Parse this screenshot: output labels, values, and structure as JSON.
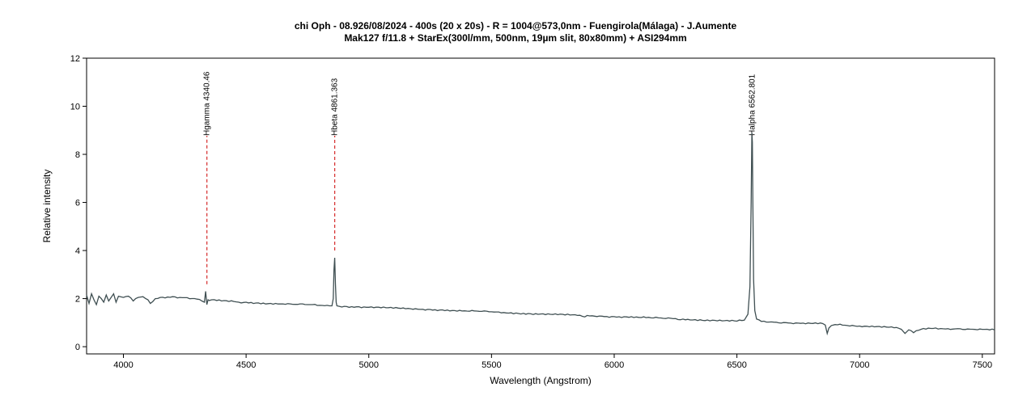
{
  "chart_data": {
    "type": "line",
    "title": "chi Oph - 08.926/08/2024 - 400s (20 x 20s) - R = 1004@573,0nm - Fuengirola(Málaga) - J.Aumente",
    "subtitle": "Mak127 f/11.8 + StarEx(300l/mm, 500nm, 19µm slit, 80x80mm) + ASI294mm",
    "xlabel": "Wavelength (Angstrom)",
    "ylabel": "Relative intensity",
    "xlim": [
      3850,
      7550
    ],
    "ylim": [
      -0.3,
      12
    ],
    "xticks": [
      4000,
      4500,
      5000,
      5500,
      6000,
      6500,
      7000,
      7500
    ],
    "yticks": [
      0,
      2,
      4,
      6,
      8,
      10,
      12
    ],
    "line_color": "#3f4f52",
    "marker_color": "#cc0000",
    "grid": false,
    "annotations": [
      {
        "label": "Hgamma 4340.46",
        "x": 4340.46,
        "y_start": 2.6
      },
      {
        "label": "Hbeta 4861.363",
        "x": 4861.363,
        "y_start": 4.0
      },
      {
        "label": "Halpha 6562.801",
        "x": 6562.801,
        "y_start": 8.8
      }
    ],
    "series": [
      {
        "x": [
          3850,
          3860,
          3870,
          3880,
          3890,
          3900,
          3910,
          3920,
          3930,
          3940,
          3950,
          3960,
          3970,
          3980,
          4000,
          4020,
          4040,
          4060,
          4080,
          4100,
          4110,
          4130,
          4150,
          4200,
          4250,
          4300,
          4320,
          4330,
          4335,
          4340,
          4345,
          4350,
          4360,
          4380,
          4400,
          4450,
          4470,
          4480,
          4500,
          4550,
          4600,
          4650,
          4700,
          4750,
          4800,
          4840,
          4850,
          4855,
          4858,
          4861,
          4864,
          4867,
          4870,
          4880,
          4900,
          4950,
          5000,
          5050,
          5100,
          5150,
          5200,
          5250,
          5300,
          5350,
          5400,
          5450,
          5500,
          5550,
          5600,
          5650,
          5700,
          5750,
          5800,
          5850,
          5880,
          5890,
          5900,
          5950,
          6000,
          6050,
          6100,
          6150,
          6200,
          6250,
          6270,
          6280,
          6300,
          6350,
          6400,
          6450,
          6500,
          6530,
          6545,
          6553,
          6558,
          6561,
          6563,
          6565,
          6568,
          6573,
          6580,
          6600,
          6650,
          6700,
          6750,
          6800,
          6850,
          6860,
          6868,
          6875,
          6885,
          6900,
          6950,
          7000,
          7050,
          7100,
          7150,
          7170,
          7185,
          7200,
          7220,
          7250,
          7300,
          7350,
          7400,
          7450,
          7500,
          7550
        ],
        "y": [
          2.15,
          1.8,
          2.2,
          1.95,
          1.75,
          2.1,
          2.0,
          1.85,
          2.15,
          1.9,
          2.05,
          2.2,
          1.85,
          2.1,
          2.05,
          2.1,
          1.9,
          2.05,
          2.08,
          1.95,
          1.8,
          2.0,
          2.05,
          2.08,
          2.04,
          1.98,
          1.9,
          1.85,
          2.3,
          1.75,
          1.95,
          1.92,
          1.95,
          1.92,
          1.9,
          1.88,
          1.85,
          1.82,
          1.85,
          1.82,
          1.8,
          1.78,
          1.76,
          1.75,
          1.72,
          1.7,
          1.7,
          2.0,
          3.2,
          3.7,
          2.6,
          1.85,
          1.7,
          1.68,
          1.68,
          1.66,
          1.64,
          1.62,
          1.6,
          1.58,
          1.56,
          1.55,
          1.53,
          1.5,
          1.48,
          1.47,
          1.45,
          1.42,
          1.4,
          1.38,
          1.36,
          1.34,
          1.32,
          1.3,
          1.24,
          1.3,
          1.28,
          1.27,
          1.25,
          1.24,
          1.22,
          1.2,
          1.18,
          1.17,
          1.12,
          1.15,
          1.14,
          1.12,
          1.1,
          1.08,
          1.06,
          1.1,
          1.35,
          2.5,
          6.0,
          8.9,
          8.5,
          6.0,
          2.8,
          1.5,
          1.15,
          1.05,
          1.02,
          1.0,
          0.98,
          0.97,
          0.96,
          0.9,
          0.55,
          0.78,
          0.88,
          0.92,
          0.88,
          0.86,
          0.86,
          0.84,
          0.8,
          0.72,
          0.55,
          0.7,
          0.58,
          0.72,
          0.76,
          0.74,
          0.75,
          0.73,
          0.72,
          0.7
        ]
      }
    ]
  }
}
